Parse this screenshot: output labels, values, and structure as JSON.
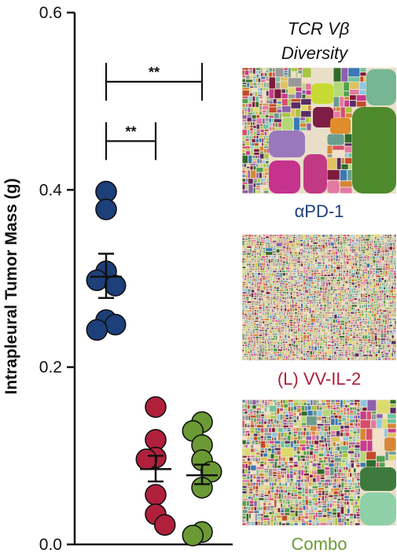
{
  "chart_data": {
    "type": "scatter",
    "ylabel": "Intrapleural Tumor Mass (g)",
    "ylim": [
      0,
      0.6
    ],
    "yticks": [
      "0.0",
      "0.2",
      "0.4",
      "0.6"
    ],
    "groups": [
      {
        "name": "αPD-1",
        "color": "#1d3f7a",
        "points": [
          0.398,
          0.378,
          0.308,
          0.298,
          0.292,
          0.253,
          0.248,
          0.242
        ],
        "mean": 0.302,
        "sem": [
          0.278,
          0.328
        ]
      },
      {
        "name": "(L) VV-IL-2",
        "color": "#b0203c",
        "points": [
          0.155,
          0.118,
          0.098,
          0.096,
          0.056,
          0.034,
          0.022
        ],
        "mean": 0.085,
        "sem": [
          0.071,
          0.1
        ]
      },
      {
        "name": "Combo",
        "color": "#6b9a34",
        "points": [
          0.138,
          0.128,
          0.112,
          0.095,
          0.082,
          0.064,
          0.014,
          0.01
        ],
        "mean": 0.078,
        "sem": [
          0.068,
          0.09
        ]
      }
    ],
    "significance": [
      {
        "from": 0,
        "to": 2,
        "y": 0.522,
        "label": "**"
      },
      {
        "from": 0,
        "to": 1,
        "y": 0.455,
        "label": "**"
      }
    ],
    "treemap_title": [
      "TCR Vβ",
      "Diversity"
    ],
    "treemaps": [
      {
        "label": "αPD-1",
        "label_color": "#1d3f7a",
        "diversity": "low"
      },
      {
        "label": "(L) VV-IL-2",
        "label_color": "#b0203c",
        "diversity": "high"
      },
      {
        "label": "Combo",
        "label_color": "#6b9a34",
        "diversity": "medium"
      }
    ]
  }
}
